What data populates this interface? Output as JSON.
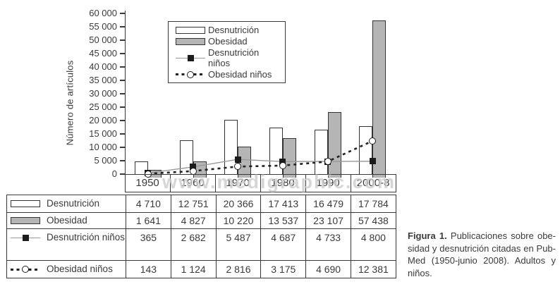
{
  "watermark": "www.medigraphic.com",
  "chart_data": {
    "type": "bar+line",
    "categories": [
      "1950",
      "1960",
      "1970",
      "1980",
      "1990",
      "2000-8"
    ],
    "series": [
      {
        "name": "Desnutrición",
        "type": "bar",
        "style": "bar-white",
        "values": [
          4710,
          12751,
          20366,
          17413,
          16479,
          17784
        ]
      },
      {
        "name": "Obesidad",
        "type": "bar",
        "style": "bar-gray",
        "values": [
          1641,
          4827,
          10220,
          13537,
          23107,
          57438
        ]
      },
      {
        "name": "Desnutrición niños",
        "type": "line",
        "style": "solid-square",
        "values": [
          365,
          2682,
          5487,
          4687,
          4733,
          4800
        ]
      },
      {
        "name": "Obesidad niños",
        "type": "line",
        "style": "dashed-circle",
        "values": [
          143,
          1124,
          2816,
          3175,
          4690,
          12381
        ]
      }
    ],
    "title": "",
    "xlabel": "",
    "ylabel": "Número de artículos",
    "ylim": [
      0,
      60000
    ],
    "ytick_step": 5000,
    "yticks": [
      "0",
      "5 000",
      "10 000",
      "15 000",
      "20 000",
      "25 000",
      "30 000",
      "35 000",
      "40 000",
      "45 000",
      "50 000",
      "55 000",
      "60 000"
    ],
    "grid": "off",
    "legend_position": "top-left"
  },
  "table": {
    "col_header": [
      "1950",
      "1960",
      "1970",
      "1980",
      "1990",
      "2000-8"
    ],
    "rows": [
      {
        "label": "Desnutrición",
        "values": [
          "4 710",
          "12 751",
          "20 366",
          "17 413",
          "16 479",
          "17 784"
        ]
      },
      {
        "label": "Obesidad",
        "values": [
          "1 641",
          "4 827",
          "10 220",
          "13 537",
          "23 107",
          "57 438"
        ]
      },
      {
        "label": "Desnutrición niños",
        "values": [
          "365",
          "2 682",
          "5 487",
          "4 687",
          "4 733",
          "4 800"
        ]
      },
      {
        "label": "Obesidad niños",
        "values": [
          "143",
          "1 124",
          "2 816",
          "3 175",
          "4 690",
          "12 381"
        ]
      }
    ]
  },
  "caption": {
    "title": "Figura 1.",
    "lines": [
      "Publicaciones sobre obe-",
      "sidad y desnutrición citadas en Pub-",
      "Med (1950-junio 2008). Adultos y",
      "niños."
    ]
  },
  "colors": {
    "ink": "#3a3a3a",
    "bar_gray_fill": "#b5b5b5",
    "line_solid_gray": "#999999",
    "line_dashed_black": "#222222",
    "watermark_gray": "#cdcdcd"
  }
}
